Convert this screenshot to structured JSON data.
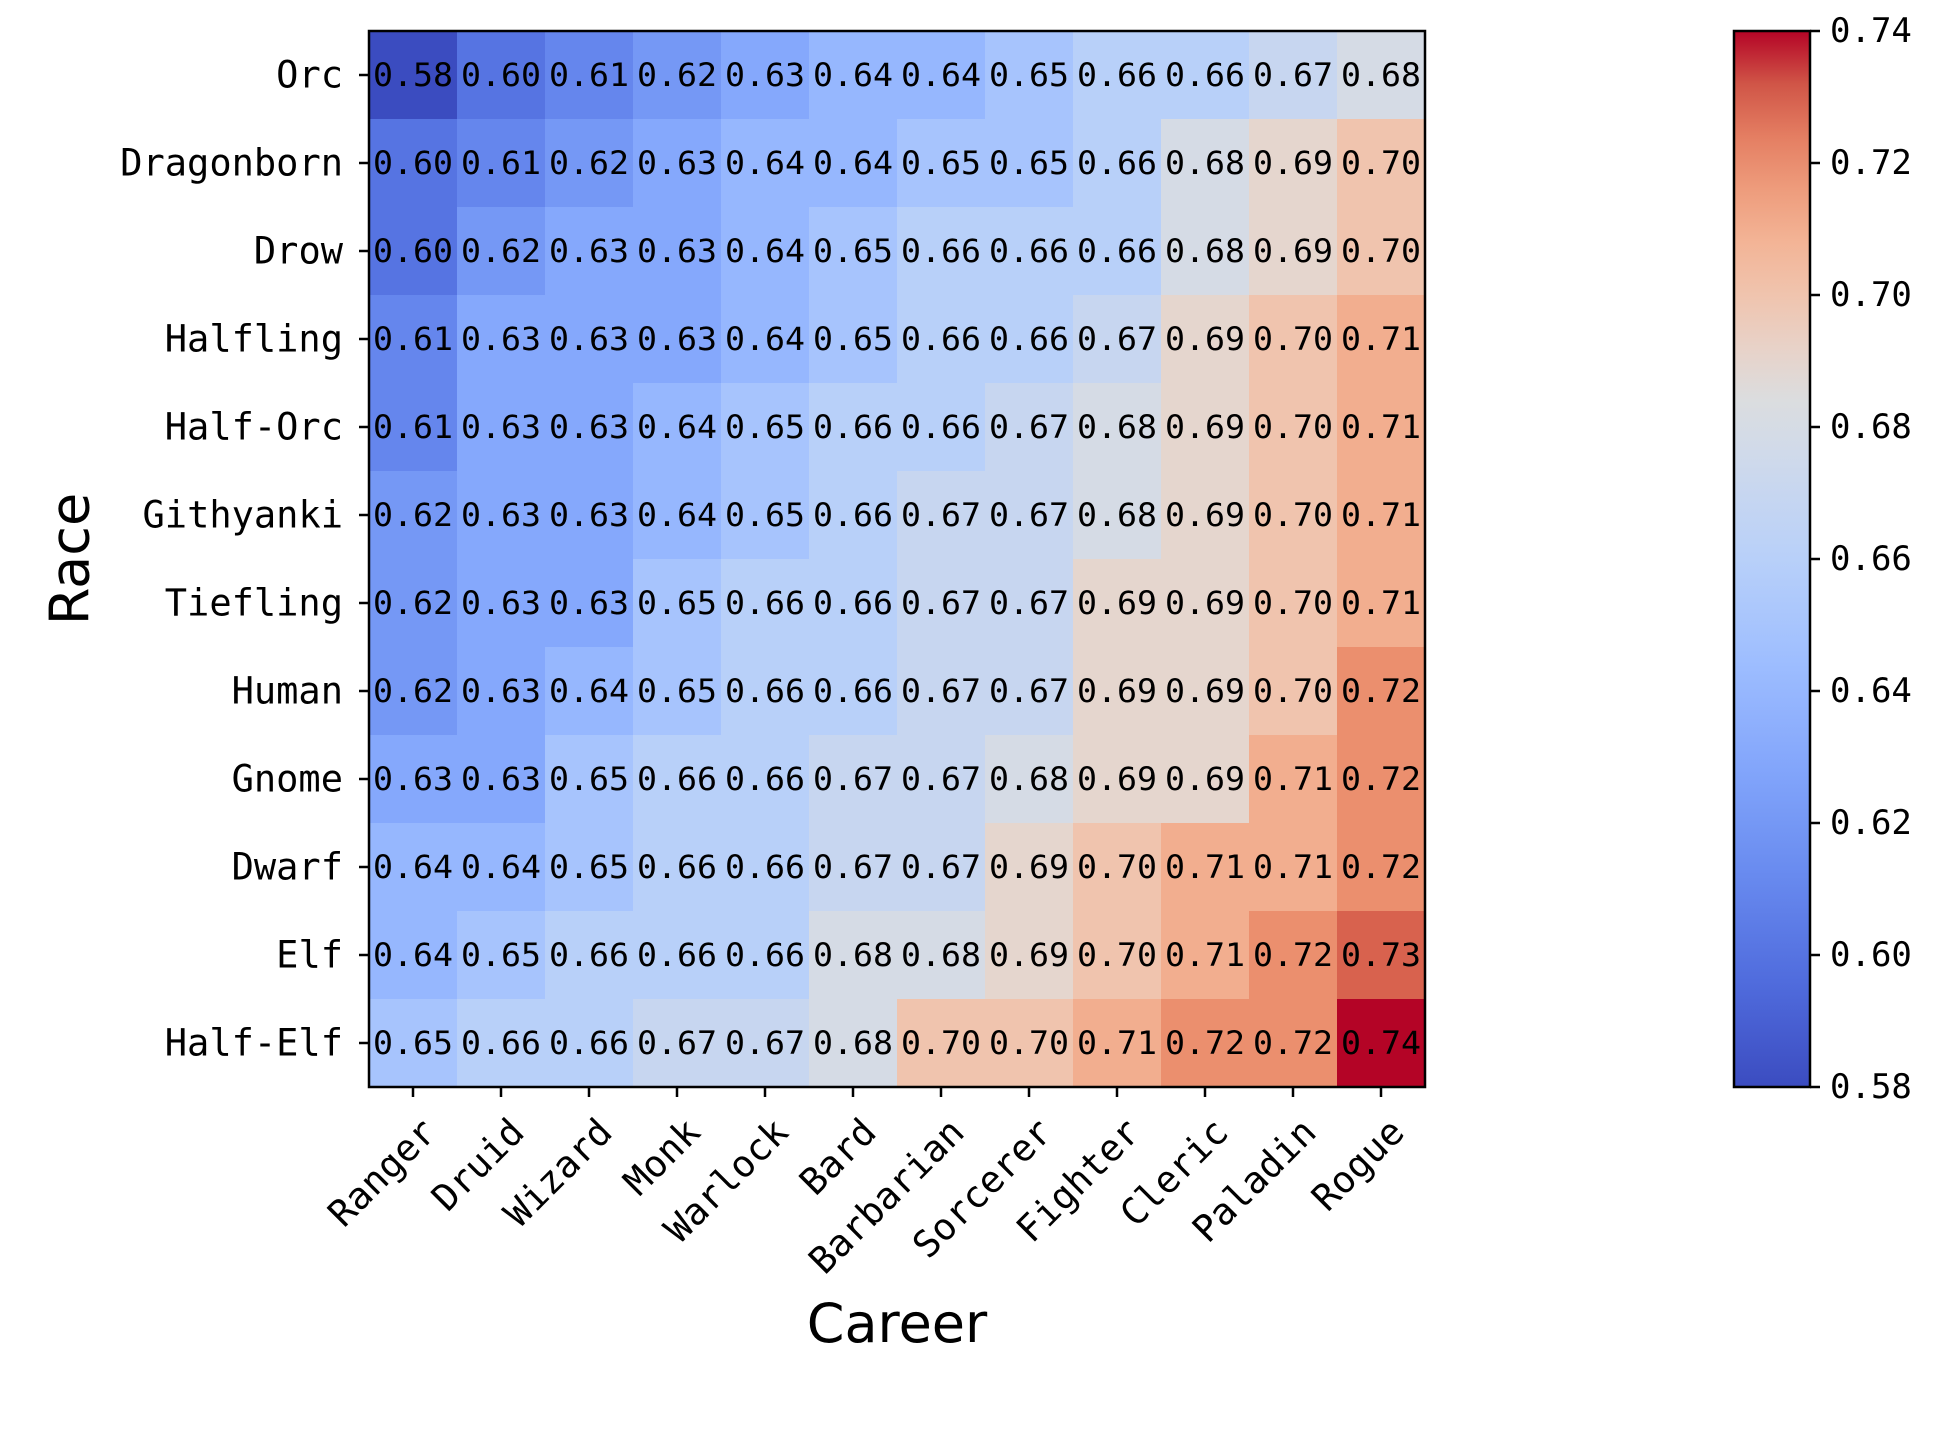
{
  "chart_data": {
    "type": "heatmap",
    "xlabel": "Career",
    "ylabel": "Race",
    "x_categories": [
      "Ranger",
      "Druid",
      "Wizard",
      "Monk",
      "Warlock",
      "Bard",
      "Barbarian",
      "Sorcerer",
      "Fighter",
      "Cleric",
      "Paladin",
      "Rogue"
    ],
    "y_categories": [
      "Orc",
      "Dragonborn",
      "Drow",
      "Halfling",
      "Half-Orc",
      "Githyanki",
      "Tiefling",
      "Human",
      "Gnome",
      "Dwarf",
      "Elf",
      "Half-Elf"
    ],
    "values": [
      [
        0.58,
        0.6,
        0.61,
        0.62,
        0.63,
        0.64,
        0.64,
        0.65,
        0.66,
        0.66,
        0.67,
        0.68
      ],
      [
        0.6,
        0.61,
        0.62,
        0.63,
        0.64,
        0.64,
        0.65,
        0.65,
        0.66,
        0.68,
        0.69,
        0.7
      ],
      [
        0.6,
        0.62,
        0.63,
        0.63,
        0.64,
        0.65,
        0.66,
        0.66,
        0.66,
        0.68,
        0.69,
        0.7
      ],
      [
        0.61,
        0.63,
        0.63,
        0.63,
        0.64,
        0.65,
        0.66,
        0.66,
        0.67,
        0.69,
        0.7,
        0.71
      ],
      [
        0.61,
        0.63,
        0.63,
        0.64,
        0.65,
        0.66,
        0.66,
        0.67,
        0.68,
        0.69,
        0.7,
        0.71
      ],
      [
        0.62,
        0.63,
        0.63,
        0.64,
        0.65,
        0.66,
        0.67,
        0.67,
        0.68,
        0.69,
        0.7,
        0.71
      ],
      [
        0.62,
        0.63,
        0.63,
        0.65,
        0.66,
        0.66,
        0.67,
        0.67,
        0.69,
        0.69,
        0.7,
        0.71
      ],
      [
        0.62,
        0.63,
        0.64,
        0.65,
        0.66,
        0.66,
        0.67,
        0.67,
        0.69,
        0.69,
        0.7,
        0.72
      ],
      [
        0.63,
        0.63,
        0.65,
        0.66,
        0.66,
        0.67,
        0.67,
        0.68,
        0.69,
        0.69,
        0.71,
        0.72
      ],
      [
        0.64,
        0.64,
        0.65,
        0.66,
        0.66,
        0.67,
        0.67,
        0.69,
        0.7,
        0.71,
        0.71,
        0.72
      ],
      [
        0.64,
        0.65,
        0.66,
        0.66,
        0.66,
        0.68,
        0.68,
        0.69,
        0.7,
        0.71,
        0.72,
        0.73
      ],
      [
        0.65,
        0.66,
        0.66,
        0.67,
        0.67,
        0.68,
        0.7,
        0.7,
        0.71,
        0.72,
        0.72,
        0.74
      ]
    ],
    "value_format": "0.00",
    "colormap": "coolwarm",
    "colorbar": {
      "range": [
        0.58,
        0.74
      ],
      "ticks": [
        "0.58",
        "0.60",
        "0.62",
        "0.64",
        "0.66",
        "0.68",
        "0.70",
        "0.72",
        "0.74"
      ],
      "placement": "right"
    },
    "grid": false
  }
}
